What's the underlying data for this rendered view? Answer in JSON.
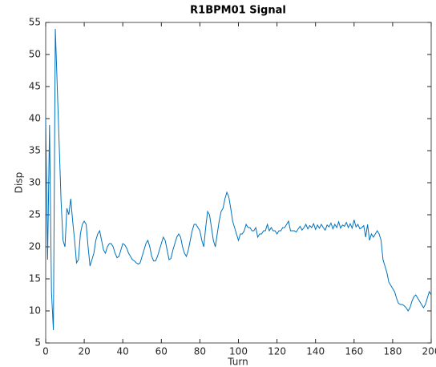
{
  "chart_data": {
    "type": "line",
    "title": "R1BPM01  Signal",
    "x_label": "Turn",
    "y_label": "Disp",
    "x": [
      0,
      1,
      2,
      3,
      4,
      5,
      6,
      7,
      8,
      9,
      10,
      11,
      12,
      13,
      14,
      15,
      16,
      17,
      18,
      19,
      20,
      21,
      22,
      23,
      24,
      25,
      26,
      27,
      28,
      29,
      30,
      31,
      32,
      33,
      34,
      35,
      36,
      37,
      38,
      39,
      40,
      41,
      42,
      43,
      44,
      45,
      46,
      47,
      48,
      49,
      50,
      51,
      52,
      53,
      54,
      55,
      56,
      57,
      58,
      59,
      60,
      61,
      62,
      63,
      64,
      65,
      66,
      67,
      68,
      69,
      70,
      71,
      72,
      73,
      74,
      75,
      76,
      77,
      78,
      79,
      80,
      81,
      82,
      83,
      84,
      85,
      86,
      87,
      88,
      89,
      90,
      91,
      92,
      93,
      94,
      95,
      96,
      97,
      98,
      99,
      100,
      101,
      102,
      103,
      104,
      105,
      106,
      107,
      108,
      109,
      110,
      111,
      112,
      113,
      114,
      115,
      116,
      117,
      118,
      119,
      120,
      121,
      122,
      123,
      124,
      125,
      126,
      127,
      128,
      129,
      130,
      131,
      132,
      133,
      134,
      135,
      136,
      137,
      138,
      139,
      140,
      141,
      142,
      143,
      144,
      145,
      146,
      147,
      148,
      149,
      150,
      151,
      152,
      153,
      154,
      155,
      156,
      157,
      158,
      159,
      160,
      161,
      162,
      163,
      164,
      165,
      166,
      167,
      168,
      169,
      170,
      171,
      172,
      173,
      174,
      175,
      176,
      177,
      178,
      179,
      180,
      181,
      182,
      183,
      184,
      185,
      186,
      187,
      188,
      189,
      190,
      191,
      192,
      193,
      194,
      195,
      196,
      197,
      198,
      199,
      200
    ],
    "series": [
      {
        "name": "R1BPM01",
        "color": "#0072bd",
        "values": [
          40,
          18,
          39,
          13,
          7,
          54,
          45,
          36,
          27,
          21,
          20,
          26,
          25,
          27.5,
          24,
          21,
          17.5,
          18,
          22,
          23.5,
          24,
          23.5,
          20,
          17,
          18,
          19,
          21,
          22,
          22.5,
          21,
          19.5,
          19,
          20,
          20.5,
          20.5,
          20,
          19,
          18.3,
          18.5,
          19.5,
          20.5,
          20.3,
          19.8,
          19,
          18.5,
          18,
          17.8,
          17.5,
          17.3,
          17.5,
          18.5,
          19.5,
          20.5,
          21,
          20,
          18.5,
          17.8,
          17.8,
          18.5,
          19.5,
          20.5,
          21.5,
          21,
          19.5,
          18,
          18.2,
          19.5,
          20.5,
          21.5,
          22,
          21.5,
          20,
          19,
          18.5,
          19.5,
          21,
          22.5,
          23.5,
          23.5,
          23,
          22.5,
          21,
          20,
          23,
          25.5,
          25,
          23,
          21,
          20,
          22,
          24,
          25.5,
          26,
          27.5,
          28.5,
          27.8,
          26,
          24,
          23,
          22,
          21,
          22,
          22,
          22.5,
          23.5,
          23,
          23,
          22.5,
          22.5,
          23,
          21.5,
          22,
          22,
          22.5,
          22.5,
          23.5,
          22.5,
          23,
          22.5,
          22.5,
          22,
          22.5,
          22.5,
          23,
          23,
          23.5,
          24,
          22.5,
          22.5,
          22.5,
          22.3,
          22.8,
          23.2,
          22.6,
          23,
          23.5,
          22.8,
          23.3,
          23,
          23.6,
          22.7,
          23.4,
          22.9,
          23.5,
          23,
          22.6,
          23.4,
          23.1,
          23.7,
          22.8,
          23.5,
          23,
          23.9,
          22.9,
          23.4,
          23.2,
          23.8,
          23,
          23.6,
          22.9,
          24.2,
          23.1,
          23.5,
          22.8,
          23,
          23.3,
          21.5,
          23.5,
          21,
          22,
          21.5,
          22,
          22.5,
          22,
          21,
          18,
          17,
          16,
          14.5,
          14,
          13.5,
          13,
          12,
          11.2,
          11,
          11,
          10.8,
          10.5,
          10,
          10.5,
          11.5,
          12.2,
          12.5,
          12,
          11.5,
          11,
          10.5,
          11,
          12,
          13,
          12.5
        ]
      }
    ],
    "xlim": [
      0,
      200
    ],
    "ylim": [
      5,
      55
    ],
    "xticks": [
      0,
      20,
      40,
      60,
      80,
      100,
      120,
      140,
      160,
      180,
      200
    ],
    "yticks": [
      5,
      10,
      15,
      20,
      25,
      30,
      35,
      40,
      45,
      50,
      55
    ]
  }
}
